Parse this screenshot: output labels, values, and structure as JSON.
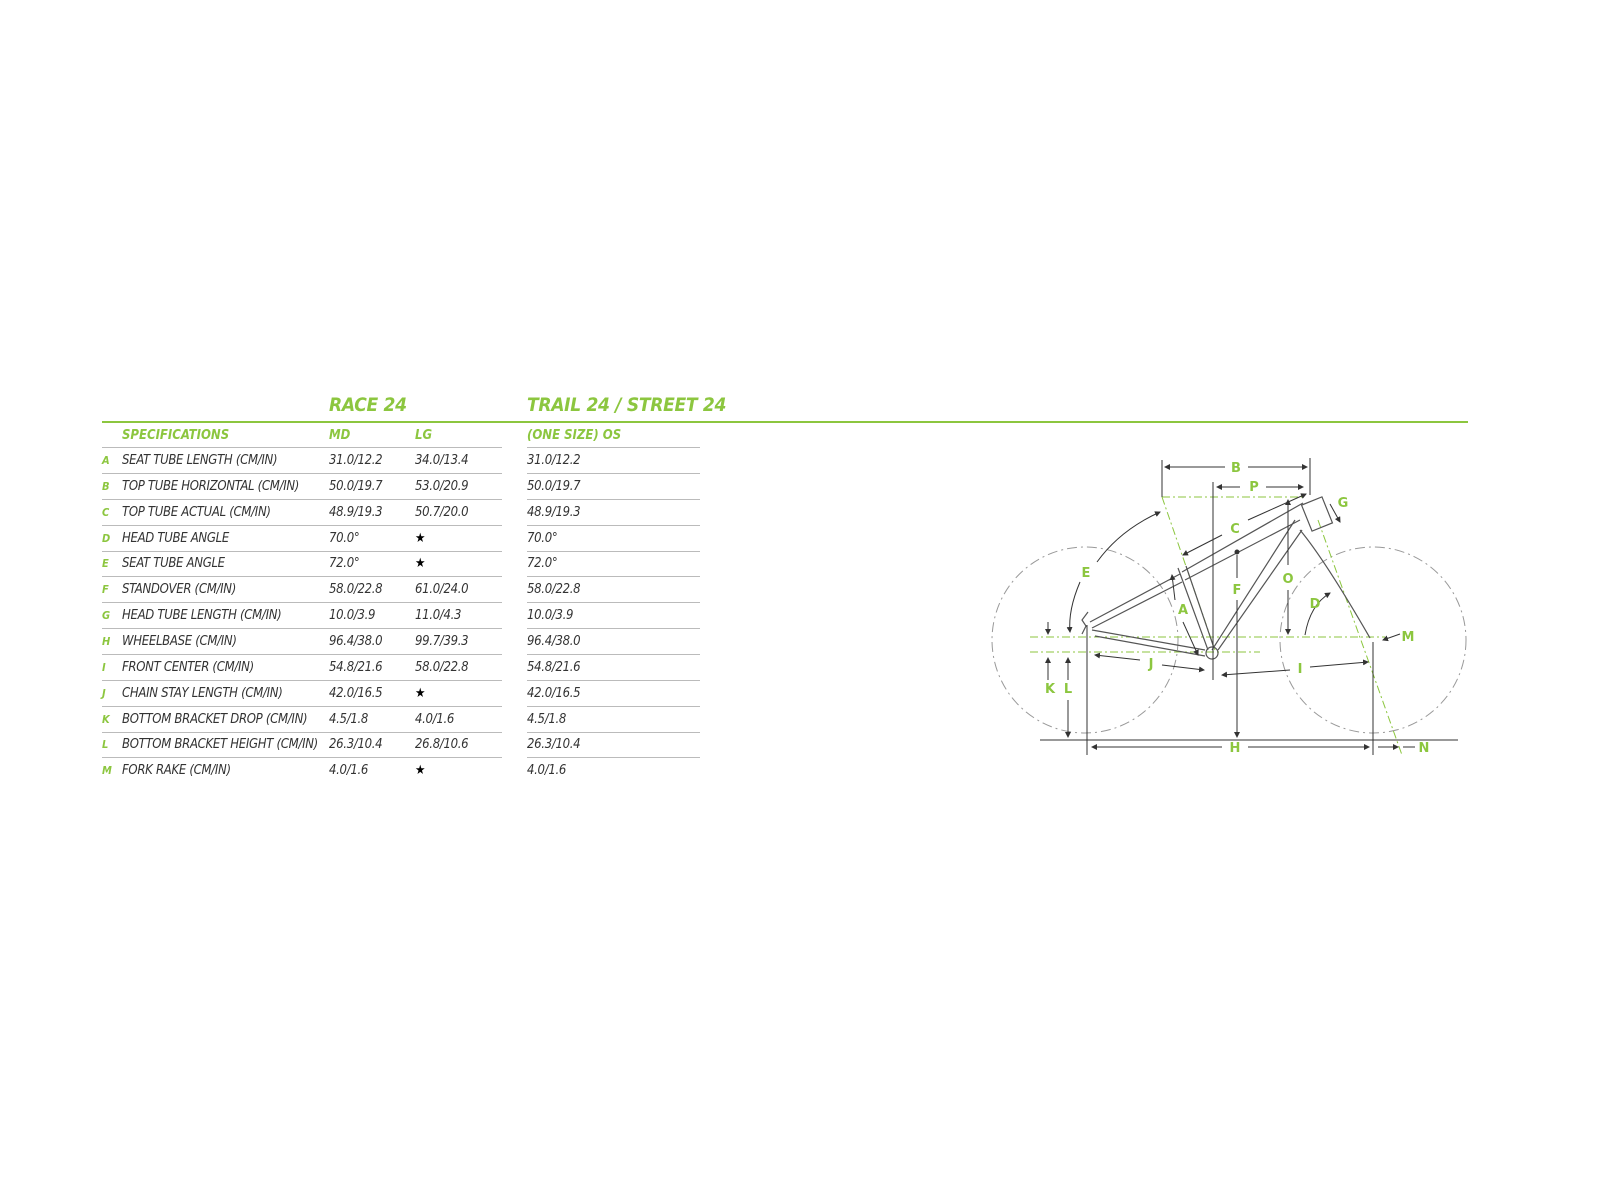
{
  "colors": {
    "accent": "#8cc63f",
    "text": "#333333",
    "rule": "#bbbbbb"
  },
  "titles": {
    "race": "RACE 24",
    "trail": "TRAIL 24 / STREET 24"
  },
  "headers": {
    "spec": "SPECIFICATIONS",
    "md": "MD",
    "lg": "LG",
    "os": "(ONE SIZE) OS"
  },
  "rows": [
    {
      "letter": "A",
      "label": "SEAT TUBE LENGTH (CM/IN)",
      "md": "31.0/12.2",
      "lg": "34.0/13.4",
      "os": "31.0/12.2"
    },
    {
      "letter": "B",
      "label": "TOP TUBE HORIZONTAL (CM/IN)",
      "md": "50.0/19.7",
      "lg": "53.0/20.9",
      "os": "50.0/19.7"
    },
    {
      "letter": "C",
      "label": "TOP TUBE ACTUAL (CM/IN)",
      "md": "48.9/19.3",
      "lg": "50.7/20.0",
      "os": "48.9/19.3"
    },
    {
      "letter": "D",
      "label": "HEAD TUBE ANGLE",
      "md": "70.0°",
      "lg": "★",
      "os": "70.0°"
    },
    {
      "letter": "E",
      "label": "SEAT TUBE ANGLE",
      "md": "72.0°",
      "lg": "★",
      "os": "72.0°"
    },
    {
      "letter": "F",
      "label": "STANDOVER (CM/IN)",
      "md": "58.0/22.8",
      "lg": "61.0/24.0",
      "os": "58.0/22.8"
    },
    {
      "letter": "G",
      "label": "HEAD TUBE LENGTH (CM/IN)",
      "md": "10.0/3.9",
      "lg": "11.0/4.3",
      "os": "10.0/3.9"
    },
    {
      "letter": "H",
      "label": "WHEELBASE (CM/IN)",
      "md": "96.4/38.0",
      "lg": "99.7/39.3",
      "os": "96.4/38.0"
    },
    {
      "letter": "I",
      "label": "FRONT CENTER (CM/IN)",
      "md": "54.8/21.6",
      "lg": "58.0/22.8",
      "os": "54.8/21.6"
    },
    {
      "letter": "J",
      "label": "CHAIN STAY LENGTH (CM/IN)",
      "md": "42.0/16.5",
      "lg": "★",
      "os": "42.0/16.5"
    },
    {
      "letter": "K",
      "label": "BOTTOM BRACKET DROP (CM/IN)",
      "md": "4.5/1.8",
      "lg": "4.0/1.6",
      "os": "4.5/1.8"
    },
    {
      "letter": "L",
      "label": "BOTTOM BRACKET HEIGHT (CM/IN)",
      "md": "26.3/10.4",
      "lg": "26.8/10.6",
      "os": "26.3/10.4"
    },
    {
      "letter": "M",
      "label": "FORK RAKE (CM/IN)",
      "md": "4.0/1.6",
      "lg": "★",
      "os": "4.0/1.6"
    }
  ],
  "diagram_labels": {
    "A": "A",
    "B": "B",
    "C": "C",
    "D": "D",
    "E": "E",
    "F": "F",
    "G": "G",
    "H": "H",
    "I": "I",
    "J": "J",
    "K": "K",
    "L": "L",
    "M": "M",
    "N": "N",
    "O": "O",
    "P": "P"
  }
}
